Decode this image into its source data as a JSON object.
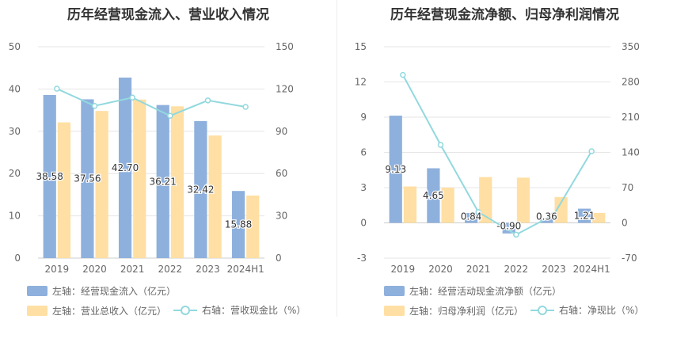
{
  "chart_data": [
    {
      "type": "bar+line",
      "title": "历年经营现金流入、营业收入情况",
      "categories": [
        "2019",
        "2020",
        "2021",
        "2022",
        "2023",
        "2024H1"
      ],
      "left_axis": {
        "ticks": [
          "0",
          "10",
          "20",
          "30",
          "40",
          "50"
        ],
        "range": [
          0,
          50
        ]
      },
      "right_axis": {
        "ticks": [
          "0",
          "30",
          "60",
          "90",
          "120",
          "150"
        ],
        "range": [
          0,
          150
        ]
      },
      "series": [
        {
          "name": "左轴：经营现金流入（亿元）",
          "kind": "bar",
          "axis": "left",
          "color": "#8eb0dd",
          "values": [
            38.58,
            37.56,
            42.7,
            36.21,
            32.42,
            15.88
          ],
          "labels": [
            "38.58",
            "37.56",
            "42.70",
            "36.21",
            "32.42",
            "15.88"
          ]
        },
        {
          "name": "左轴：营业总收入（亿元）",
          "kind": "bar",
          "axis": "left",
          "color": "#ffdfa3",
          "values": [
            32.1,
            34.8,
            37.5,
            35.9,
            29.0,
            14.8
          ]
        },
        {
          "name": "右轴：营收现金比（%）",
          "kind": "line",
          "axis": "right",
          "color": "#92d9de",
          "values": [
            120.2,
            108.0,
            113.9,
            101.0,
            111.9,
            107.3
          ]
        }
      ],
      "grid": true,
      "legend_position": "bottom-left"
    },
    {
      "type": "bar+line",
      "title": "历年经营现金流净额、归母净利润情况",
      "categories": [
        "2019",
        "2020",
        "2021",
        "2022",
        "2023",
        "2024H1"
      ],
      "left_axis": {
        "ticks": [
          "-3",
          "0",
          "3",
          "6",
          "9",
          "12",
          "15"
        ],
        "range": [
          -3,
          15
        ]
      },
      "right_axis": {
        "ticks": [
          "-70",
          "0",
          "70",
          "140",
          "210",
          "280",
          "350"
        ],
        "range": [
          -70,
          350
        ]
      },
      "series": [
        {
          "name": "左轴：经营活动现金流净额（亿元）",
          "kind": "bar",
          "axis": "left",
          "color": "#8eb0dd",
          "values": [
            9.13,
            4.65,
            0.84,
            -0.9,
            0.36,
            1.21
          ],
          "labels": [
            "9.13",
            "4.65",
            "0.84",
            "-0.90",
            "0.36",
            "1.21"
          ]
        },
        {
          "name": "左轴：归母净利润（亿元）",
          "kind": "bar",
          "axis": "left",
          "color": "#ffdfa3",
          "values": [
            3.1,
            3.0,
            3.9,
            3.85,
            2.2,
            0.85
          ]
        },
        {
          "name": "右轴：净现比（%）",
          "kind": "line",
          "axis": "right",
          "color": "#92d9de",
          "values": [
            294.0,
            155.0,
            21.5,
            -23.4,
            16.4,
            142.4
          ]
        }
      ],
      "grid": true,
      "legend_position": "bottom-left"
    }
  ]
}
